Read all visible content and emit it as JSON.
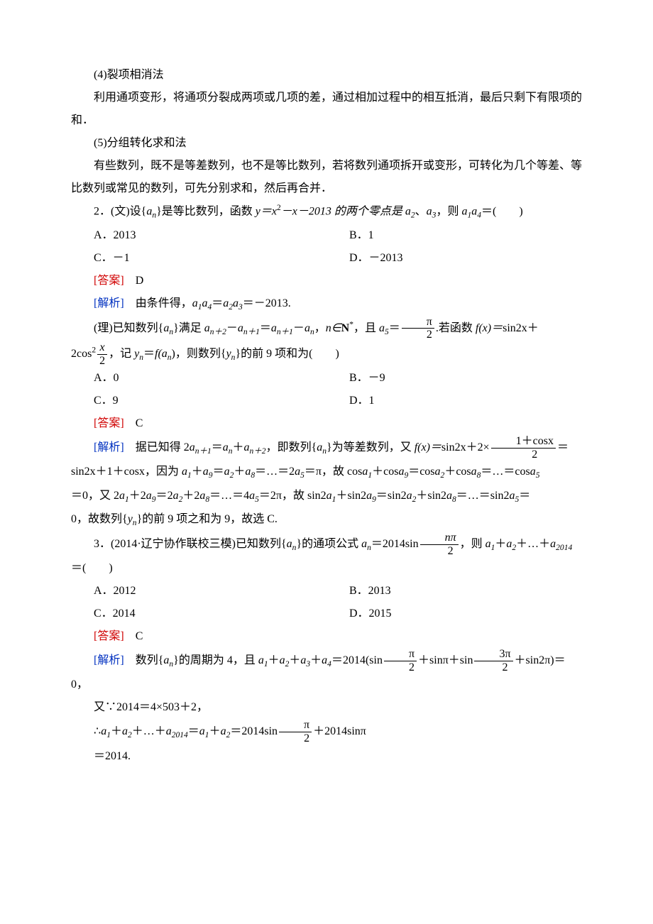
{
  "s4": {
    "title": "(4)裂项相消法",
    "body": "利用通项变形，将通项分裂成两项或几项的差，通过相加过程中的相互抵消，最后只剩下有限项的和．"
  },
  "s5": {
    "title": "(5)分组转化求和法",
    "body": "有些数列，既不是等差数列，也不是等比数列，若将数列通项拆开或变形，可转化为几个等差、等比数列或常见的数列，可先分别求和，然后再合并．"
  },
  "q2": {
    "wen": {
      "stem_pre": "2．(文)设{",
      "stem_an": "a",
      "stem_mid1": "}是等比数列，函数 ",
      "stem_func": "y＝x",
      "stem_mid2": "－x－2013 的两个零点是 ",
      "stem_a2": "a",
      "stem_comma": "、",
      "stem_a3": "a",
      "stem_mid3": "，则 ",
      "stem_a1": "a",
      "stem_a4": "a",
      "stem_tail": "＝(　　)",
      "optA": "A．2013",
      "optB": "B．1",
      "optC": "C．－1",
      "optD": "D．－2013",
      "answer_label": "[答案]",
      "answer": "D",
      "analysis_label": "[解析]",
      "analysis_pre": "由条件得，",
      "analysis_eq": "a",
      "analysis_tail": "＝－2013."
    },
    "li": {
      "stem_pre": "(理)已知数列{",
      "stem_mid1": "}满足 ",
      "stem_mid2": "，",
      "stem_nin": "n∈",
      "stem_N": "N",
      "stem_star": "*",
      "stem_mid3": "，且 ",
      "stem_a5": "a",
      "stem_eq": "＝",
      "pi_num": "π",
      "pi_den": "2",
      "stem_mid4": ".若函数 ",
      "stem_fx": "f(x)＝",
      "stem_sin2x": "sin2x＋",
      "two_cos2": "2cos",
      "x_num": "x",
      "x_den": "2",
      "stem_mid5": "，记 ",
      "yn": "y",
      "eq2": "＝",
      "fan": "f(a",
      "stem_mid6": ")，则数列{",
      "stem_mid7": "}的前 9 项和为(　　)",
      "optA": "A．0",
      "optB": "B．－9",
      "optC": "C．9",
      "optD": "D．1",
      "answer_label": "[答案]",
      "answer": "C",
      "analysis_label": "[解析]",
      "ana1_pre": "据已知得 2",
      "ana1_mid1": "，即数列{",
      "ana1_mid2": "}为等差数列，又 ",
      "ana1_fx": "f(x)＝",
      "ana1_sin": "sin2x＋2×",
      "frac_num": "1＋cosx",
      "frac_den": "2",
      "ana1_eq": "＝",
      "ana2": "sin2x＋1＋cosx，因为 ",
      "ana2_mid": "＝…＝2",
      "ana2_a5": "a",
      "ana2_eqpi": "＝π，故 cos",
      "ana2_tail": "＝…＝cos",
      "ana3_pre": "＝0，又 2",
      "ana3_mid": "＝…＝4",
      "ana3_eq2pi": "＝2π，故 sin2",
      "ana3_tail": "＝…＝sin2",
      "ana4": "0，故数列{",
      "ana4_tail": "}的前 9 项之和为 9，故选 C."
    }
  },
  "q3": {
    "stem_pre": "3．(2014·辽宁协作联校三模)已知数列{",
    "stem_mid1": "}的通项公式 ",
    "stem_an": "a",
    "stem_eq": "＝2014sin",
    "npi_num": "nπ",
    "npi_den": "2",
    "stem_mid2": "，则 ",
    "stem_sum": "a",
    "stem_tail": "＝(　　)",
    "optA": "A．2012",
    "optB": "B．2013",
    "optC": "C．2014",
    "optD": "D．2015",
    "answer_label": "[答案]",
    "answer": "C",
    "analysis_label": "[解析]",
    "ana1_pre": "数列{",
    "ana1_mid": "}的周期为 4，且 ",
    "ana1_sum": "a",
    "ana1_eq": "＝2014(sin",
    "pi_num": "π",
    "pi_den": "2",
    "ana1_mid2": "＋sinπ＋sin",
    "three_pi_num": "3π",
    "three_pi_den": "2",
    "ana1_tail": "＋sin2π)＝0，",
    "ana2": "又∵2014＝4×503＋2，",
    "ana3_pre": "∴",
    "ana3_sum": "a",
    "ana3_mid": "＝2014sin",
    "ana3_tail": "＋2014sinπ",
    "ana4": "＝2014."
  }
}
